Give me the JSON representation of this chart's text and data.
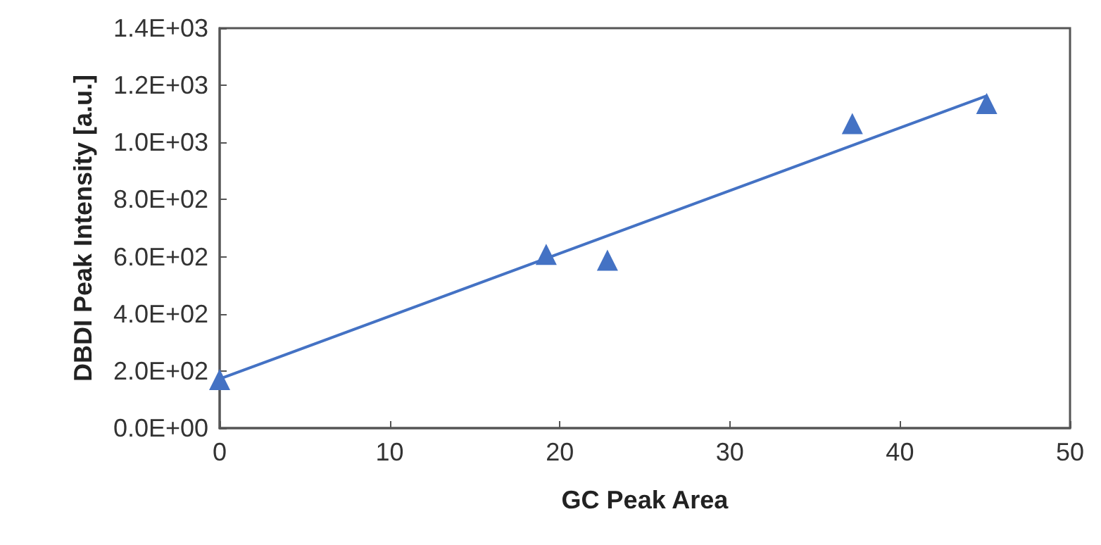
{
  "chart_data": {
    "type": "scatter",
    "xlabel": "GC Peak Area",
    "ylabel": "DBDI Peak Intensity [a.u.]",
    "marker": "triangle",
    "grid": false,
    "xlim": [
      0,
      50
    ],
    "xticks": [
      0,
      10,
      20,
      30,
      40,
      50
    ],
    "ylim": [
      0,
      1400
    ],
    "yticks": [
      {
        "value": 0,
        "label": "0.0E+00"
      },
      {
        "value": 200,
        "label": "2.0E+02"
      },
      {
        "value": 400,
        "label": "4.0E+02"
      },
      {
        "value": 600,
        "label": "6.0E+02"
      },
      {
        "value": 800,
        "label": "8.0E+02"
      },
      {
        "value": 1000,
        "label": "1.0E+03"
      },
      {
        "value": 1200,
        "label": "1.2E+03"
      },
      {
        "value": 1400,
        "label": "1.4E+03"
      }
    ],
    "series": [
      {
        "color": "#4472c4",
        "x": [
          0,
          19.2,
          22.8,
          37.2,
          45.1
        ],
        "values": [
          170,
          608,
          588,
          1066,
          1136
        ]
      },
      {
        "type": "line",
        "color": "#4472c4",
        "marker": "none",
        "x": [
          0,
          45.1
        ],
        "values": [
          172,
          1163
        ]
      }
    ]
  }
}
